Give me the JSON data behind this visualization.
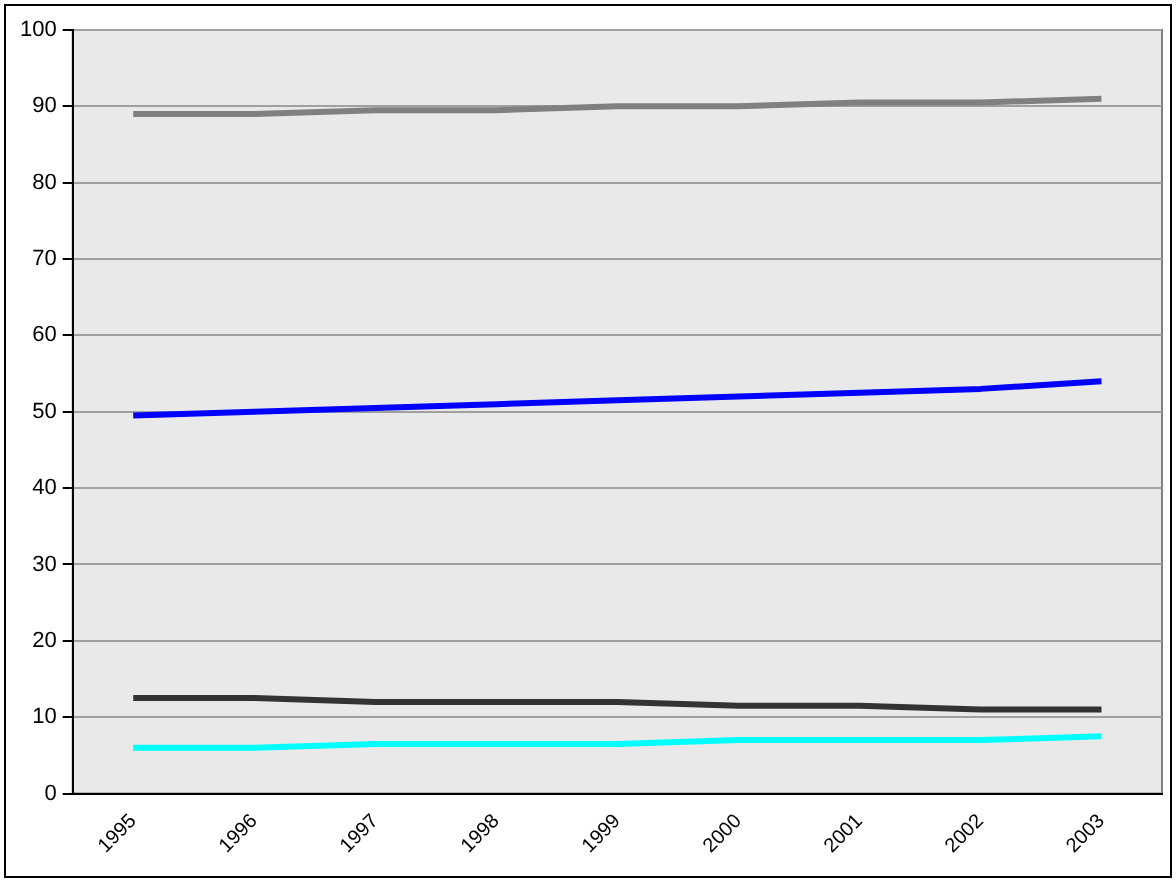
{
  "chart_data": {
    "type": "line",
    "categories": [
      "1995",
      "1996",
      "1997",
      "1998",
      "1999",
      "2000",
      "2001",
      "2002",
      "2003"
    ],
    "series": [
      {
        "color": "#808080",
        "values": [
          89,
          89,
          89.5,
          89.5,
          90,
          90,
          90.5,
          90.5,
          91
        ]
      },
      {
        "color": "#0000ff",
        "values": [
          49.5,
          50,
          50.5,
          51,
          51.5,
          52,
          52.5,
          53,
          54
        ]
      },
      {
        "color": "#333333",
        "values": [
          12.5,
          12.5,
          12,
          12,
          12,
          11.5,
          11.5,
          11,
          11
        ]
      },
      {
        "color": "#00ffff",
        "values": [
          6,
          6,
          6.5,
          6.5,
          6.5,
          7,
          7,
          7,
          7.5
        ]
      }
    ],
    "ylim": [
      0,
      100
    ],
    "yticks": [
      0,
      10,
      20,
      30,
      40,
      50,
      60,
      70,
      80,
      90,
      100
    ],
    "grid": "y",
    "marker": "none",
    "line_style": "solid"
  }
}
